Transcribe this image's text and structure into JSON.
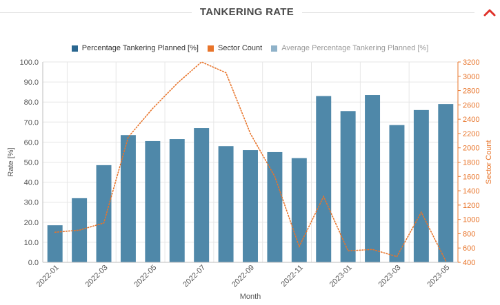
{
  "header": {
    "title": "TANKERING RATE",
    "collapse_icon": "chevron-up-icon"
  },
  "colors": {
    "bar": "#4f88a9",
    "line": "#e8742a",
    "legend_primary": "#2a6790",
    "legend_avg": "#8fb2c9",
    "grid": "#e6e6e6",
    "axis_text": "#555555",
    "right_axis_text": "#e8742a",
    "collapse_icon": "#e0322a"
  },
  "legend": [
    {
      "label": "Percentage Tankering Planned [%]",
      "color": "#2a6790",
      "text_color": "#333333"
    },
    {
      "label": "Sector Count",
      "color": "#e8742a",
      "text_color": "#333333"
    },
    {
      "label": "Average Percentage Tankering Planned [%]",
      "color": "#8fb2c9",
      "text_color": "#9a9a9a"
    }
  ],
  "chart_data": {
    "type": "bar",
    "title": "TANKERING RATE",
    "xlabel": "Month",
    "ylabel": "Rate [%]",
    "y2label": "Sector Count",
    "ylim": [
      0,
      100
    ],
    "y2lim": [
      400,
      3200
    ],
    "yticks": [
      "0.0",
      "10.0",
      "20.0",
      "30.0",
      "40.0",
      "50.0",
      "60.0",
      "70.0",
      "80.0",
      "90.0",
      "100.0"
    ],
    "y2ticks": [
      "400",
      "600",
      "800",
      "1000",
      "1200",
      "1400",
      "1600",
      "1800",
      "2000",
      "2200",
      "2400",
      "2600",
      "2800",
      "3000",
      "3200"
    ],
    "categories": [
      "2022-01",
      "2022-02",
      "2022-03",
      "2022-04",
      "2022-05",
      "2022-06",
      "2022-07",
      "2022-08",
      "2022-09",
      "2022-10",
      "2022-11",
      "2022-12",
      "2023-01",
      "2023-02",
      "2023-03",
      "2023-04",
      "2023-05"
    ],
    "xtick_labels": [
      "2022-01",
      "2022-03",
      "2022-05",
      "2022-07",
      "2022-09",
      "2022-11",
      "2023-01",
      "2023-03",
      "2023-05"
    ],
    "series": [
      {
        "name": "Percentage Tankering Planned [%]",
        "type": "bar",
        "axis": "left",
        "values": [
          18.5,
          32.0,
          48.5,
          63.5,
          60.5,
          61.5,
          67.0,
          58.0,
          56.0,
          55.0,
          52.0,
          83.0,
          75.5,
          83.5,
          68.5,
          76.0,
          79.0
        ]
      },
      {
        "name": "Sector Count",
        "type": "line",
        "style": "dotted",
        "axis": "right",
        "values": [
          820,
          850,
          950,
          2150,
          2550,
          2900,
          3200,
          3050,
          2200,
          1600,
          620,
          1320,
          560,
          580,
          480,
          1100,
          420
        ]
      }
    ],
    "legend_position": "top-center",
    "grid": true
  }
}
